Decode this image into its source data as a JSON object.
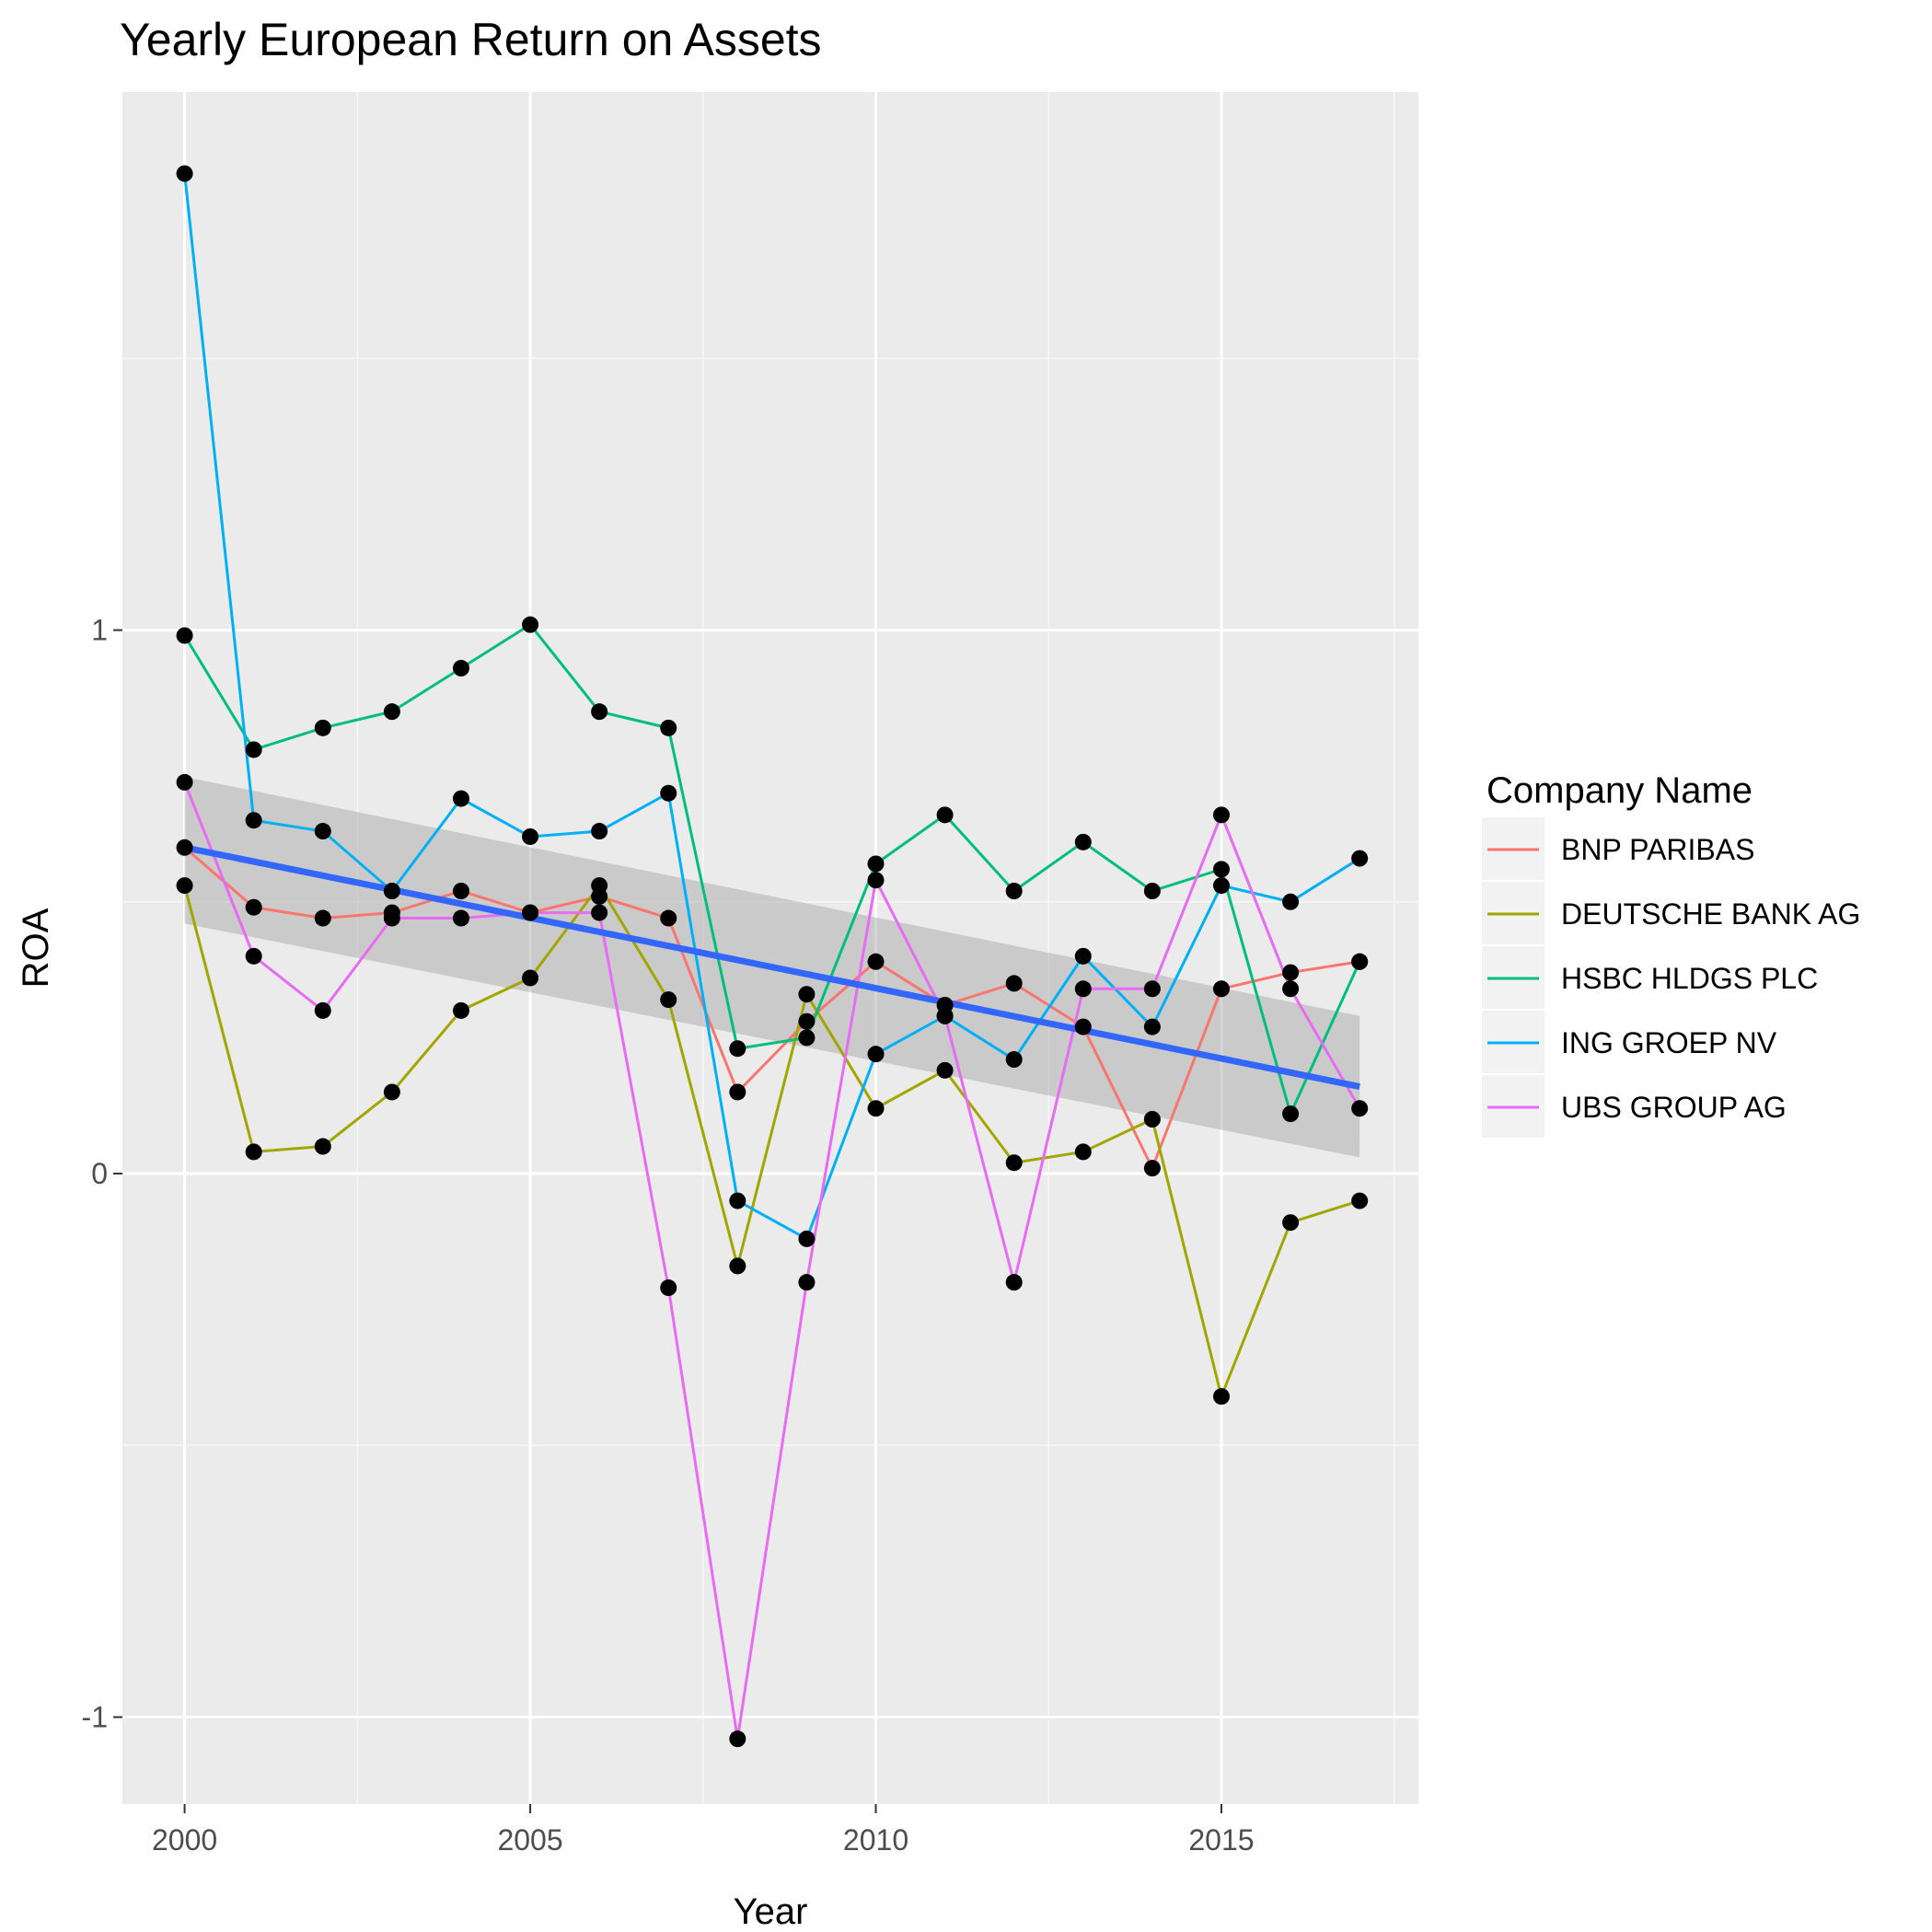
{
  "chart_data": {
    "type": "line",
    "title": "Yearly European Return on Assets",
    "xlabel": "Year",
    "ylabel": "ROA",
    "xlim": [
      1999.1,
      2017.85
    ],
    "ylim": [
      -1.16,
      1.99
    ],
    "x_ticks": [
      2000,
      2005,
      2010,
      2015
    ],
    "y_ticks": [
      -1,
      0,
      1
    ],
    "x_tick_labels": [
      "2000",
      "2005",
      "2010",
      "2015"
    ],
    "y_tick_labels": [
      "-1",
      "0",
      "1"
    ],
    "grid": true,
    "legend": {
      "title": "Company Name",
      "position": "right"
    },
    "x": [
      2000,
      2001,
      2002,
      2003,
      2004,
      2005,
      2006,
      2007,
      2008,
      2009,
      2010,
      2011,
      2012,
      2013,
      2014,
      2015,
      2016,
      2017
    ],
    "series": [
      {
        "name": "BNP PARIBAS",
        "color": "#F8766D",
        "values": [
          0.6,
          0.49,
          0.47,
          0.48,
          0.52,
          0.48,
          0.51,
          0.47,
          0.15,
          0.28,
          0.39,
          0.31,
          0.35,
          0.27,
          0.01,
          0.34,
          0.37,
          0.39
        ]
      },
      {
        "name": "DEUTSCHE BANK AG",
        "color": "#A3A500",
        "values": [
          0.53,
          0.04,
          0.05,
          0.15,
          0.3,
          0.36,
          0.53,
          0.32,
          -0.17,
          0.33,
          0.12,
          0.19,
          0.02,
          0.04,
          0.1,
          -0.41,
          -0.09,
          -0.05
        ]
      },
      {
        "name": "HSBC HLDGS PLC",
        "color": "#00BF7D",
        "values": [
          0.99,
          0.78,
          0.82,
          0.85,
          0.93,
          1.01,
          0.85,
          0.82,
          0.23,
          0.25,
          0.57,
          0.66,
          0.52,
          0.61,
          0.52,
          0.56,
          0.11,
          0.39
        ]
      },
      {
        "name": "ING GROEP NV",
        "color": "#00B0F6",
        "values": [
          1.84,
          0.65,
          0.63,
          0.52,
          0.69,
          0.62,
          0.63,
          0.7,
          -0.05,
          -0.12,
          0.22,
          0.29,
          0.21,
          0.4,
          0.27,
          0.53,
          0.5,
          0.58
        ]
      },
      {
        "name": "UBS GROUP AG",
        "color": "#E76BF3",
        "values": [
          0.72,
          0.4,
          0.3,
          0.47,
          0.47,
          0.48,
          0.48,
          -0.21,
          -1.04,
          -0.2,
          0.54,
          0.29,
          -0.2,
          0.34,
          0.34,
          0.66,
          0.34,
          0.12
        ]
      }
    ],
    "trend": {
      "method": "linear fit",
      "color": "#3366FF",
      "band_color": "#999999",
      "x": [
        2000,
        2017
      ],
      "fit": [
        0.6,
        0.16
      ],
      "lower": [
        0.46,
        0.03
      ],
      "upper": [
        0.73,
        0.29
      ]
    }
  }
}
